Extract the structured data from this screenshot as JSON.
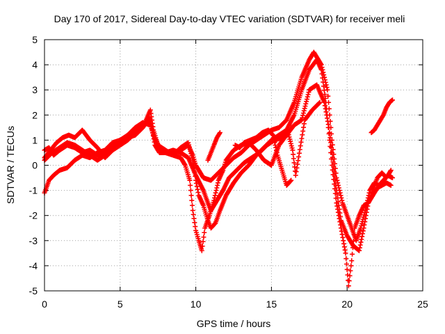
{
  "chart_data": {
    "type": "scatter",
    "title": "Day 170 of 2017, Sidereal Day-to-day VTEC variation (SDTVAR) for receiver meli",
    "xlabel": "GPS time / hours",
    "ylabel": "SDTVAR / TECUs",
    "xlim": [
      0,
      25
    ],
    "ylim": [
      -5,
      5
    ],
    "xticks": [
      "0",
      "5",
      "10",
      "15",
      "20",
      "25"
    ],
    "yticks": [
      "-5",
      "-4",
      "-3",
      "-2",
      "-1",
      "0",
      "1",
      "2",
      "3",
      "4",
      "5"
    ],
    "grid": true,
    "marker": "+",
    "color": "#ff0000",
    "series": [
      {
        "points": [
          [
            0.0,
            0.6
          ],
          [
            0.3,
            0.7
          ],
          [
            0.6,
            0.4
          ],
          [
            1.0,
            0.6
          ],
          [
            1.5,
            0.8
          ],
          [
            2.0,
            0.7
          ],
          [
            2.5,
            0.5
          ],
          [
            3.0,
            0.6
          ],
          [
            3.5,
            0.4
          ],
          [
            4.0,
            0.5
          ],
          [
            4.5,
            0.8
          ],
          [
            5.0,
            1.0
          ],
          [
            5.5,
            1.2
          ],
          [
            6.0,
            1.5
          ],
          [
            6.5,
            1.7
          ],
          [
            7.0,
            1.6
          ],
          [
            7.3,
            1.0
          ],
          [
            7.5,
            0.6
          ],
          [
            8.0,
            0.5
          ],
          [
            8.5,
            0.5
          ],
          [
            9.0,
            0.6
          ],
          [
            9.5,
            0.8
          ],
          [
            9.8,
            0.4
          ],
          [
            10.0,
            0.0
          ],
          [
            10.2,
            -0.2
          ],
          [
            10.5,
            -0.5
          ],
          [
            11.0,
            -0.6
          ],
          [
            11.5,
            -0.3
          ],
          [
            12.0,
            0.0
          ],
          [
            12.5,
            0.3
          ],
          [
            13.0,
            0.5
          ],
          [
            13.5,
            0.8
          ],
          [
            14.0,
            1.0
          ],
          [
            14.5,
            1.2
          ],
          [
            15.0,
            1.4
          ],
          [
            15.5,
            1.5
          ],
          [
            16.0,
            1.8
          ],
          [
            16.5,
            2.5
          ],
          [
            17.0,
            3.5
          ],
          [
            17.5,
            4.2
          ],
          [
            17.8,
            4.5
          ],
          [
            18.0,
            4.3
          ],
          [
            18.3,
            4.0
          ],
          [
            18.7,
            3.0
          ],
          [
            19.0,
            1.0
          ],
          [
            19.3,
            -0.5
          ],
          [
            19.7,
            -1.5
          ],
          [
            20.0,
            -2.0
          ],
          [
            20.3,
            -2.5
          ],
          [
            20.6,
            -3.0
          ],
          [
            20.9,
            -2.5
          ],
          [
            21.2,
            -1.8
          ],
          [
            21.5,
            -1.0
          ],
          [
            21.8,
            -0.7
          ],
          [
            22.1,
            -0.8
          ],
          [
            22.4,
            -0.6
          ],
          [
            22.7,
            -0.4
          ],
          [
            23.0,
            -0.5
          ]
        ]
      },
      {
        "points": [
          [
            0.0,
            -1.1
          ],
          [
            0.3,
            -0.6
          ],
          [
            0.6,
            -0.4
          ],
          [
            1.0,
            -0.2
          ],
          [
            1.5,
            -0.1
          ],
          [
            2.0,
            0.2
          ],
          [
            2.5,
            0.4
          ],
          [
            3.0,
            0.3
          ],
          [
            3.5,
            0.5
          ],
          [
            4.0,
            0.6
          ],
          [
            4.5,
            0.9
          ],
          [
            5.0,
            1.0
          ],
          [
            5.5,
            1.1
          ],
          [
            6.0,
            1.4
          ],
          [
            6.5,
            1.5
          ],
          [
            7.0,
            2.2
          ],
          [
            7.2,
            1.4
          ],
          [
            7.5,
            0.8
          ],
          [
            8.0,
            0.6
          ],
          [
            8.5,
            0.4
          ],
          [
            9.0,
            0.7
          ],
          [
            9.5,
            0.9
          ],
          [
            9.8,
            0.2
          ],
          [
            10.0,
            -0.6
          ],
          [
            10.2,
            -1.2
          ],
          [
            10.5,
            -1.6
          ],
          [
            10.8,
            -2.2
          ],
          [
            11.0,
            -2.5
          ],
          [
            11.3,
            -2.3
          ],
          [
            11.6,
            -1.8
          ],
          [
            12.0,
            -1.2
          ],
          [
            12.5,
            -0.7
          ],
          [
            13.0,
            -0.3
          ],
          [
            13.5,
            0.0
          ],
          [
            14.0,
            0.4
          ],
          [
            14.5,
            0.7
          ],
          [
            15.0,
            1.0
          ],
          [
            15.5,
            1.2
          ],
          [
            16.0,
            1.4
          ],
          [
            16.5,
            2.0
          ],
          [
            17.0,
            3.0
          ],
          [
            17.5,
            3.8
          ],
          [
            18.0,
            4.2
          ],
          [
            18.3,
            3.8
          ],
          [
            18.6,
            2.5
          ],
          [
            19.0,
            0.0
          ],
          [
            19.3,
            -1.5
          ],
          [
            19.6,
            -2.5
          ],
          [
            19.9,
            -3.5
          ],
          [
            20.1,
            -4.8
          ],
          [
            20.3,
            -3.8
          ],
          [
            20.5,
            -2.5
          ],
          [
            20.8,
            -2.0
          ],
          [
            21.1,
            -1.6
          ],
          [
            21.4,
            -1.5
          ],
          [
            21.7,
            -1.2
          ],
          [
            22.0,
            -0.9
          ],
          [
            22.3,
            -0.8
          ],
          [
            22.6,
            -0.7
          ],
          [
            22.9,
            -0.8
          ]
        ]
      },
      {
        "points": [
          [
            0.0,
            0.3
          ],
          [
            0.4,
            0.6
          ],
          [
            0.8,
            0.9
          ],
          [
            1.2,
            1.1
          ],
          [
            1.6,
            1.2
          ],
          [
            2.0,
            1.1
          ],
          [
            2.5,
            1.4
          ],
          [
            3.0,
            1.0
          ],
          [
            3.5,
            0.7
          ],
          [
            4.0,
            0.3
          ],
          [
            4.5,
            0.6
          ],
          [
            5.0,
            0.8
          ],
          [
            5.5,
            1.0
          ],
          [
            6.0,
            1.3
          ],
          [
            6.5,
            1.6
          ],
          [
            7.0,
            1.8
          ],
          [
            7.3,
            0.8
          ],
          [
            7.6,
            0.5
          ],
          [
            8.0,
            0.5
          ],
          [
            8.5,
            0.4
          ],
          [
            9.0,
            0.3
          ],
          [
            9.3,
            0.0
          ],
          [
            9.6,
            -0.6
          ],
          [
            9.8,
            -1.8
          ],
          [
            10.0,
            -2.6
          ],
          [
            10.2,
            -3.0
          ],
          [
            10.4,
            -3.4
          ],
          [
            10.6,
            -2.5
          ],
          [
            10.9,
            -2.0
          ],
          [
            11.2,
            -1.4
          ],
          [
            11.5,
            -0.6
          ],
          [
            11.8,
            -0.2
          ],
          [
            12.0,
            0.2
          ],
          [
            12.5,
            0.6
          ],
          [
            13.0,
            0.8
          ],
          [
            13.5,
            0.9
          ],
          [
            14.0,
            0.6
          ],
          [
            14.5,
            0.2
          ],
          [
            15.0,
            0.0
          ],
          [
            15.5,
            0.8
          ],
          [
            16.0,
            1.2
          ],
          [
            16.5,
            1.6
          ],
          [
            17.0,
            1.8
          ],
          [
            17.5,
            3.0
          ],
          [
            18.0,
            3.2
          ],
          [
            18.5,
            2.5
          ],
          [
            18.8,
            1.5
          ],
          [
            19.0,
            0.5
          ],
          [
            19.3,
            -1.0
          ],
          [
            19.6,
            -2.2
          ],
          [
            20.0,
            -2.8
          ],
          [
            20.4,
            -3.2
          ],
          [
            20.8,
            -3.4
          ],
          [
            21.1,
            -2.5
          ],
          [
            21.4,
            -1.5
          ],
          [
            21.7,
            -1.0
          ],
          [
            22.0,
            -0.5
          ],
          [
            22.3,
            -0.3
          ],
          [
            22.6,
            -0.5
          ],
          [
            22.9,
            -0.2
          ]
        ]
      },
      {
        "points": [
          [
            0.0,
            0.2
          ],
          [
            0.5,
            0.5
          ],
          [
            1.0,
            0.7
          ],
          [
            1.5,
            0.9
          ],
          [
            2.0,
            0.8
          ],
          [
            2.5,
            0.6
          ],
          [
            3.0,
            0.4
          ],
          [
            3.5,
            0.2
          ],
          [
            4.0,
            0.4
          ],
          [
            4.5,
            0.7
          ],
          [
            5.0,
            0.9
          ],
          [
            5.5,
            1.1
          ],
          [
            6.0,
            1.2
          ],
          [
            6.5,
            1.5
          ],
          [
            6.9,
            1.9
          ],
          [
            7.2,
            1.2
          ],
          [
            7.6,
            0.7
          ],
          [
            8.0,
            0.5
          ],
          [
            8.5,
            0.6
          ],
          [
            9.0,
            0.5
          ],
          [
            9.5,
            0.3
          ],
          [
            10.0,
            -0.4
          ],
          [
            10.5,
            -1.0
          ],
          [
            10.8,
            -1.5
          ],
          [
            11.0,
            -1.8
          ],
          [
            11.4,
            -1.4
          ],
          [
            11.8,
            -1.0
          ],
          [
            12.2,
            -0.5
          ],
          [
            12.7,
            -0.2
          ],
          [
            13.2,
            0.1
          ],
          [
            13.7,
            0.3
          ],
          [
            14.2,
            0.5
          ],
          [
            14.7,
            0.8
          ],
          [
            15.2,
            1.0
          ],
          [
            15.7,
            1.1
          ],
          [
            16.1,
            1.3
          ],
          [
            16.4,
            0.6
          ],
          [
            16.6,
            -0.4
          ],
          [
            17.2,
            1.8
          ],
          [
            17.7,
            2.2
          ],
          [
            18.2,
            2.5
          ]
        ]
      },
      {
        "points": [
          [
            21.6,
            1.3
          ],
          [
            21.8,
            1.4
          ],
          [
            22.0,
            1.6
          ],
          [
            22.2,
            1.8
          ],
          [
            22.4,
            2.0
          ],
          [
            22.6,
            2.3
          ],
          [
            22.8,
            2.5
          ],
          [
            23.0,
            2.6
          ]
        ]
      },
      {
        "points": [
          [
            12.6,
            0.8
          ],
          [
            12.9,
            0.7
          ],
          [
            13.2,
            0.9
          ],
          [
            13.6,
            1.0
          ],
          [
            14.0,
            1.1
          ],
          [
            14.4,
            1.3
          ],
          [
            14.8,
            1.4
          ],
          [
            15.1,
            1.2
          ],
          [
            15.4,
            0.4
          ],
          [
            15.7,
            -0.2
          ],
          [
            16.0,
            -0.8
          ],
          [
            16.3,
            -0.6
          ]
        ]
      },
      {
        "points": [
          [
            10.8,
            0.2
          ],
          [
            11.0,
            0.5
          ],
          [
            11.2,
            0.8
          ],
          [
            11.4,
            1.1
          ],
          [
            11.6,
            1.3
          ]
        ]
      }
    ]
  }
}
